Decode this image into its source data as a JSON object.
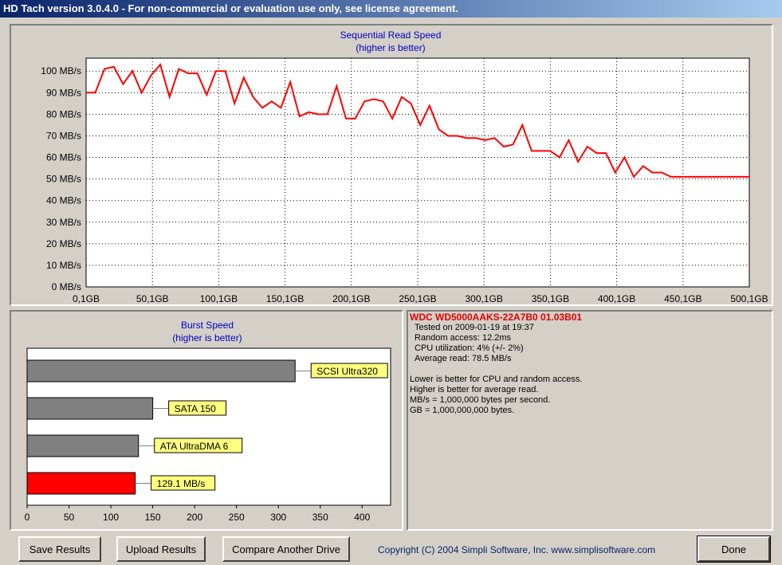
{
  "window": {
    "title": "HD Tach version 3.0.4.0  - For non-commercial or evaluation use only, see license agreement."
  },
  "seq_chart": {
    "title": "Sequential Read Speed",
    "subtitle": "(higher is better)"
  },
  "burst_chart": {
    "title": "Burst Speed",
    "subtitle": "(higher is better)"
  },
  "chart_data": [
    {
      "type": "line",
      "title": "Sequential Read Speed",
      "subtitle": "(higher is better)",
      "x_ticks": [
        "0,1GB",
        "50,1GB",
        "100,1GB",
        "150,1GB",
        "200,1GB",
        "250,1GB",
        "300,1GB",
        "350,1GB",
        "400,1GB",
        "450,1GB",
        "500,1GB"
      ],
      "y_ticks": [
        "0 MB/s",
        "10 MB/s",
        "20 MB/s",
        "30 MB/s",
        "40 MB/s",
        "50 MB/s",
        "60 MB/s",
        "70 MB/s",
        "80 MB/s",
        "90 MB/s",
        "100 MB/s"
      ],
      "xlim": [
        0.1,
        500.1
      ],
      "ylim": [
        0,
        106
      ],
      "grid": true,
      "color": "#ff0000",
      "x": [
        0.1,
        7,
        14,
        21,
        28,
        35,
        42,
        49,
        56,
        63,
        70,
        77,
        84,
        91,
        98,
        105,
        112,
        119,
        126,
        133,
        140,
        147,
        154,
        161,
        168,
        175,
        182,
        189,
        196,
        203,
        210,
        217,
        224,
        231,
        238,
        245,
        252,
        259,
        266,
        273,
        280,
        287,
        294,
        301,
        308,
        315,
        322,
        329,
        336,
        343,
        350,
        357,
        364,
        371,
        378,
        385,
        392,
        399,
        406,
        413,
        420,
        427,
        434,
        441,
        448,
        455,
        462,
        469,
        476,
        483,
        490,
        497,
        500.1
      ],
      "y": [
        90,
        90,
        101,
        102,
        94,
        100,
        90,
        98,
        103,
        88,
        101,
        99,
        99,
        89,
        100,
        100,
        85,
        97,
        88,
        83,
        86,
        83,
        95,
        79,
        81,
        80,
        80,
        93,
        78,
        78,
        86,
        87,
        86,
        78,
        88,
        85,
        75,
        84,
        73,
        70,
        70,
        69,
        69,
        68,
        69,
        65,
        66,
        75,
        63,
        63,
        63,
        60,
        68,
        58,
        65,
        62,
        62,
        53,
        60,
        51,
        56,
        53,
        53,
        51,
        51,
        51,
        51,
        51,
        51,
        51,
        51,
        51,
        51
      ]
    },
    {
      "type": "bar",
      "title": "Burst Speed",
      "subtitle": "(higher is better)",
      "orientation": "horizontal",
      "categories": [
        "SCSI Ultra320",
        "SATA 150",
        "ATA UltraDMA 6",
        "129.1 MB/s"
      ],
      "values": [
        320,
        150,
        133,
        129.1
      ],
      "colors": [
        "#808080",
        "#808080",
        "#808080",
        "#ff0000"
      ],
      "label_color": "#ffff80",
      "x_ticks": [
        "0",
        "50",
        "100",
        "150",
        "200",
        "250",
        "300",
        "350",
        "400"
      ],
      "xlim": [
        0,
        434
      ]
    }
  ],
  "info": {
    "drive": "WDC WD5000AAKS-22A7B0 01.03B01",
    "tested_on": "Tested on 2009-01-19 at 19:37",
    "random_access": "Random access: 12.2ms",
    "cpu": "CPU utilization: 4% (+/- 2%)",
    "avg_read": "Average read: 78.5 MB/s",
    "note1": "Lower is better for CPU and random access.",
    "note2": "Higher is better for average read.",
    "note3": "MB/s = 1,000,000 bytes per second.",
    "note4": "GB = 1,000,000,000 bytes."
  },
  "buttons": {
    "save": "Save Results",
    "upload": "Upload Results",
    "compare": "Compare Another Drive",
    "done": "Done"
  },
  "footer": {
    "copyright": "Copyright (C) 2004 Simpli Software, Inc. www.simplisoftware.com"
  }
}
